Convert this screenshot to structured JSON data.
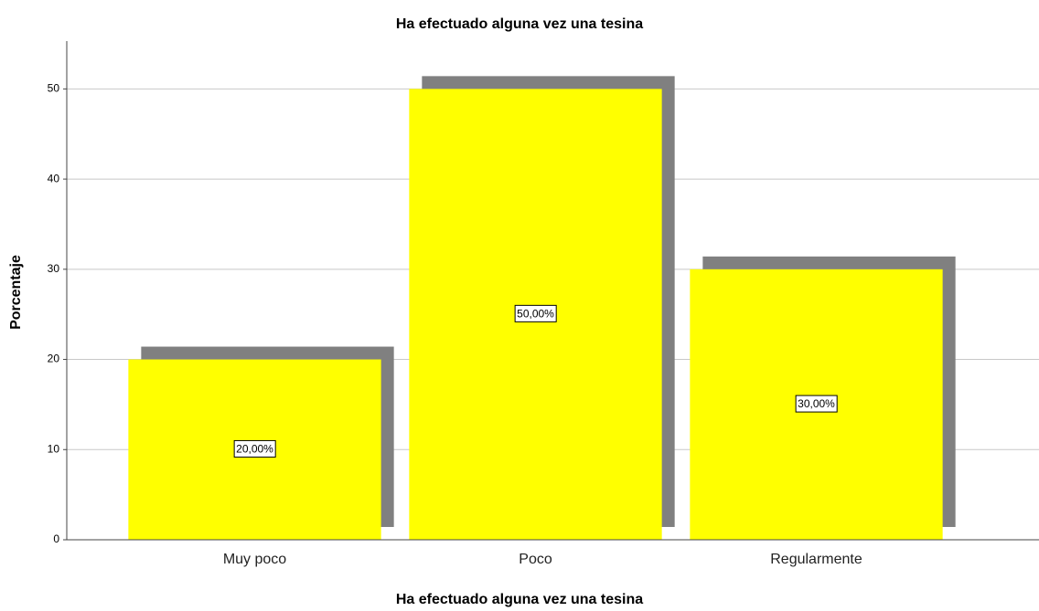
{
  "chart_data": {
    "type": "bar",
    "title": "Ha efectuado alguna vez una tesina",
    "x_label": "Ha efectuado alguna vez una tesina",
    "y_label": "Porcentaje",
    "categories": [
      "Muy poco",
      "Poco",
      "Regularmente"
    ],
    "values": [
      20,
      50,
      30
    ],
    "value_labels": [
      "20,00%",
      "50,00%",
      "30,00%"
    ],
    "color": "#ffff00",
    "ylim": [
      0,
      55
    ],
    "yticks": [
      0,
      10,
      20,
      30,
      40,
      50
    ],
    "grid": true
  }
}
